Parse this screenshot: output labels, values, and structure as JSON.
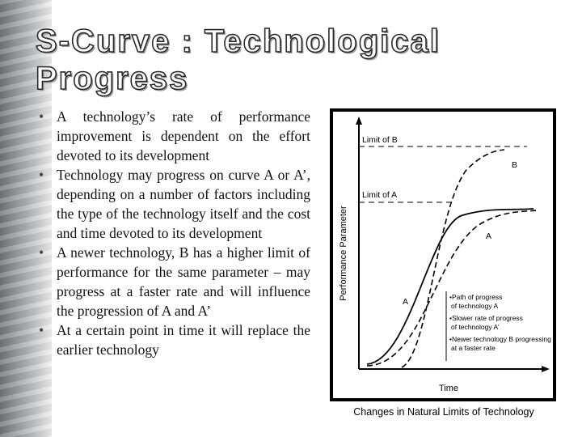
{
  "slide": {
    "title_line1": "S-Curve : Technological",
    "title_line2": "Progress",
    "bullets": [
      "A technology’s rate of performance improvement is dependent on the effort devoted to its development",
      "Technology may progress on curve A or A’, depending on a number of factors including the type of the technology itself and the cost and time devoted to its development",
      "A newer technology, B has a higher limit of performance for the same parameter – may progress at a faster rate and will influence the progression of A and A’",
      "At a certain point in time it will replace the earlier technology"
    ],
    "caption": "Changes in Natural Limits of Technology"
  },
  "diagram": {
    "x_axis_label": "Time",
    "y_axis_label": "Performance Parameter",
    "limit_b_label": "Limit of B",
    "limit_a_label": "Limit of A",
    "curve_labels": {
      "b": "B",
      "a_upper": "A",
      "a_lower": "A"
    },
    "legend": [
      [
        "•Path of progress",
        "of technology A"
      ],
      [
        "•Slower rate of progress",
        "of technology A’"
      ],
      [
        "•Newer technology B progressing",
        "at a faster rate"
      ]
    ]
  }
}
